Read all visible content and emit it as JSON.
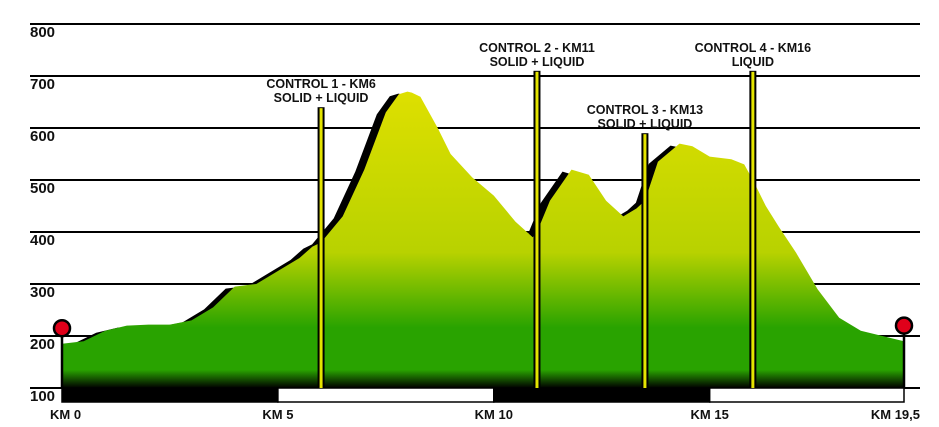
{
  "chart_data": {
    "type": "area",
    "title": "",
    "xlabel": "",
    "ylabel": "",
    "ylim": [
      100,
      800
    ],
    "xlim": [
      0,
      19.5
    ],
    "grid": true,
    "y_ticks": [
      {
        "value": 100,
        "label": "100"
      },
      {
        "value": 200,
        "label": "200"
      },
      {
        "value": 300,
        "label": "300"
      },
      {
        "value": 400,
        "label": "400"
      },
      {
        "value": 500,
        "label": "500"
      },
      {
        "value": 600,
        "label": "600"
      },
      {
        "value": 700,
        "label": "700"
      },
      {
        "value": 800,
        "label": "800"
      }
    ],
    "x_ticks": [
      {
        "value": 0,
        "label": "KM 0"
      },
      {
        "value": 5,
        "label": "KM 5"
      },
      {
        "value": 10,
        "label": "KM 10"
      },
      {
        "value": 15,
        "label": "KM 15"
      },
      {
        "value": 19.5,
        "label": "KM 19,5"
      }
    ],
    "x": [
      0,
      0.5,
      1.0,
      1.5,
      2.0,
      2.5,
      3.0,
      3.5,
      4.0,
      4.3,
      4.5,
      5.0,
      5.5,
      5.8,
      6.0,
      6.5,
      7.0,
      7.5,
      7.8,
      8.0,
      8.1,
      8.3,
      8.7,
      9.0,
      9.5,
      10.0,
      10.5,
      10.9,
      11.0,
      11.3,
      11.8,
      12.2,
      12.6,
      13.0,
      13.3,
      13.5,
      13.8,
      14.3,
      14.6,
      15.0,
      15.5,
      15.8,
      16.0,
      16.3,
      16.6,
      17.0,
      17.5,
      18.0,
      18.5,
      19.0,
      19.5
    ],
    "values": [
      185,
      190,
      210,
      220,
      222,
      222,
      230,
      255,
      295,
      298,
      300,
      325,
      350,
      372,
      380,
      430,
      520,
      630,
      665,
      670,
      668,
      660,
      600,
      550,
      505,
      470,
      420,
      390,
      400,
      460,
      520,
      510,
      460,
      430,
      445,
      460,
      535,
      570,
      565,
      545,
      540,
      530,
      500,
      450,
      410,
      360,
      290,
      235,
      210,
      200,
      190
    ],
    "controls": [
      {
        "line1": "CONTROL 1 - KM6",
        "line2": "SOLID + LIQUID",
        "km": 6,
        "top": 640
      },
      {
        "line1": "CONTROL 2 - KM11",
        "line2": "SOLID + LIQUID",
        "km": 11,
        "top": 710
      },
      {
        "line1": "CONTROL 3 - KM13",
        "line2": "SOLID + LIQUID",
        "km": 13.5,
        "top": 590
      },
      {
        "line1": "CONTROL 4 - KM16",
        "line2": "LIQUID",
        "km": 16,
        "top": 710
      }
    ],
    "endpoints": [
      {
        "km": 0,
        "value": 215
      },
      {
        "km": 19.5,
        "value": 220
      }
    ],
    "colors": {
      "fill_top": "#dfe000",
      "fill_mid": "#b8d200",
      "fill_green": "#29a300",
      "fill_base": "#000000",
      "shadow": "#000000",
      "grid": "#000000",
      "control_line": "#e4e400",
      "marker": "#e0001a"
    }
  }
}
